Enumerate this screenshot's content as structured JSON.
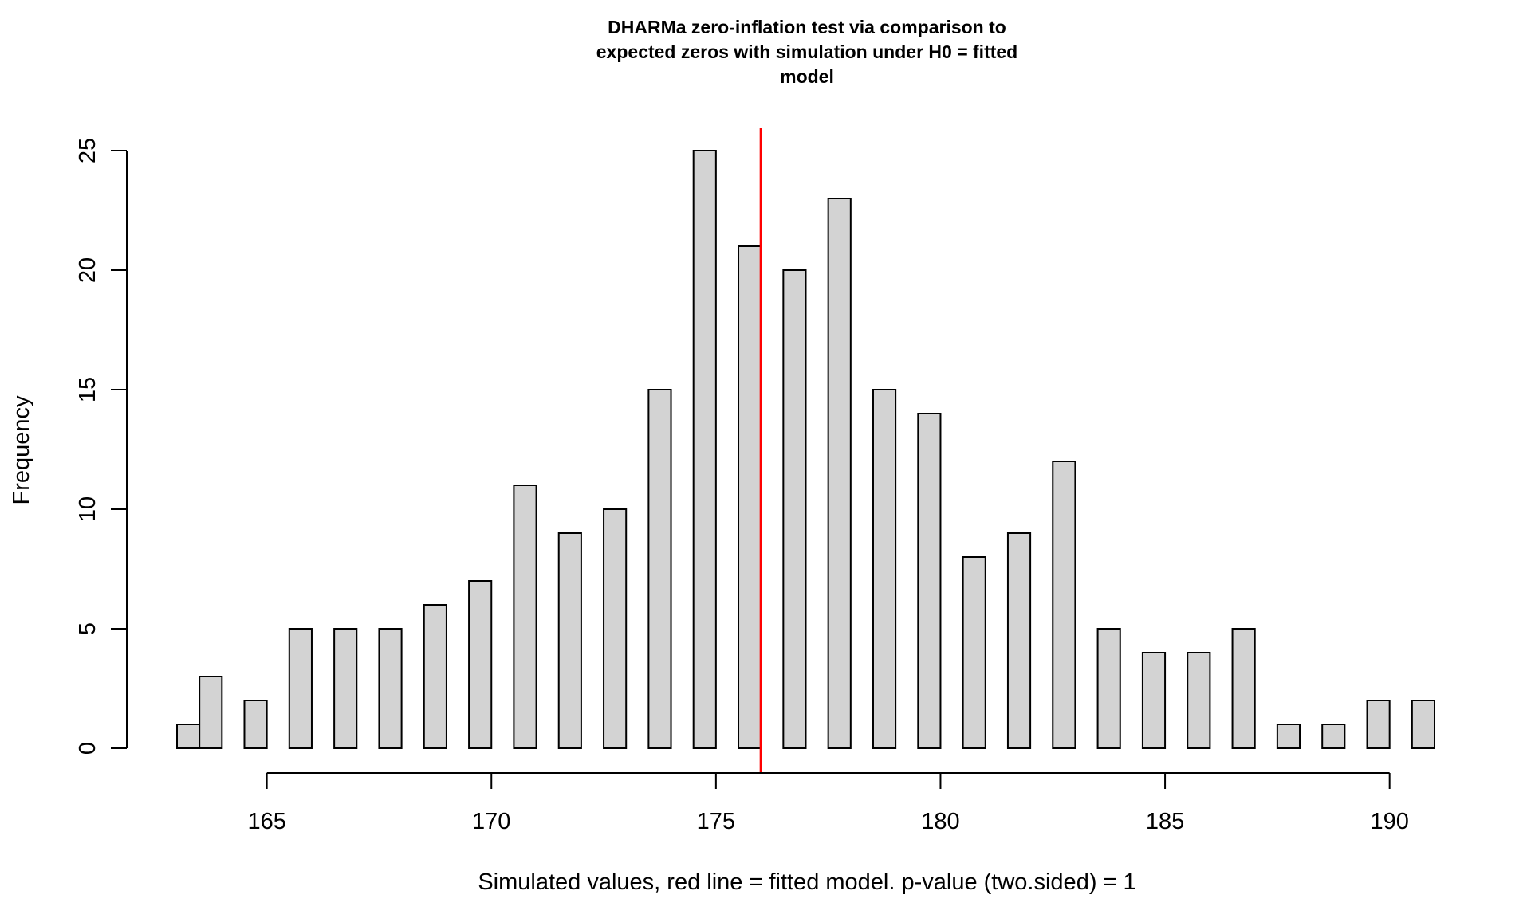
{
  "chart_data": {
    "type": "bar",
    "title_lines": [
      "DHARMa zero-inflation test via comparison to",
      "expected zeros with simulation under H0 = fitted",
      "model"
    ],
    "xlabel": "Simulated values, red line = fitted model. p-value (two.sided) = 1",
    "ylabel": "Frequency",
    "xlim": [
      163,
      191
    ],
    "ylim": [
      0,
      25
    ],
    "x_ticks": [
      165,
      170,
      175,
      180,
      185,
      190
    ],
    "x_tick_labels": [
      "165",
      "170",
      "175",
      "180",
      "185",
      "190"
    ],
    "y_ticks": [
      0,
      5,
      10,
      15,
      20,
      25
    ],
    "y_tick_labels": [
      "0",
      "5",
      "10",
      "15",
      "20",
      "25"
    ],
    "grid": false,
    "bars": [
      {
        "x0": 163.0,
        "x1": 163.5,
        "value": 1
      },
      {
        "x0": 163.5,
        "x1": 164.0,
        "value": 3
      },
      {
        "x0": 164.5,
        "x1": 165.0,
        "value": 2
      },
      {
        "x0": 165.5,
        "x1": 166.0,
        "value": 5
      },
      {
        "x0": 166.5,
        "x1": 167.0,
        "value": 5
      },
      {
        "x0": 167.5,
        "x1": 168.0,
        "value": 5
      },
      {
        "x0": 168.5,
        "x1": 169.0,
        "value": 6
      },
      {
        "x0": 169.5,
        "x1": 170.0,
        "value": 7
      },
      {
        "x0": 170.5,
        "x1": 171.0,
        "value": 11
      },
      {
        "x0": 171.5,
        "x1": 172.0,
        "value": 9
      },
      {
        "x0": 172.5,
        "x1": 173.0,
        "value": 10
      },
      {
        "x0": 173.5,
        "x1": 174.0,
        "value": 15
      },
      {
        "x0": 174.5,
        "x1": 175.0,
        "value": 25
      },
      {
        "x0": 175.5,
        "x1": 176.0,
        "value": 21
      },
      {
        "x0": 176.5,
        "x1": 177.0,
        "value": 20
      },
      {
        "x0": 177.5,
        "x1": 178.0,
        "value": 23
      },
      {
        "x0": 178.5,
        "x1": 179.0,
        "value": 15
      },
      {
        "x0": 179.5,
        "x1": 180.0,
        "value": 14
      },
      {
        "x0": 180.5,
        "x1": 181.0,
        "value": 8
      },
      {
        "x0": 181.5,
        "x1": 182.0,
        "value": 9
      },
      {
        "x0": 182.5,
        "x1": 183.0,
        "value": 12
      },
      {
        "x0": 183.5,
        "x1": 184.0,
        "value": 5
      },
      {
        "x0": 184.5,
        "x1": 185.0,
        "value": 4
      },
      {
        "x0": 185.5,
        "x1": 186.0,
        "value": 4
      },
      {
        "x0": 186.5,
        "x1": 187.0,
        "value": 5
      },
      {
        "x0": 187.5,
        "x1": 188.0,
        "value": 1
      },
      {
        "x0": 188.5,
        "x1": 189.0,
        "value": 1
      },
      {
        "x0": 189.5,
        "x1": 190.0,
        "value": 2
      },
      {
        "x0": 190.5,
        "x1": 191.0,
        "value": 2
      }
    ],
    "reference_line": {
      "x": 176,
      "color": "#ff0000"
    },
    "bar_fill": "#d3d3d3",
    "bar_stroke": "#000000"
  }
}
